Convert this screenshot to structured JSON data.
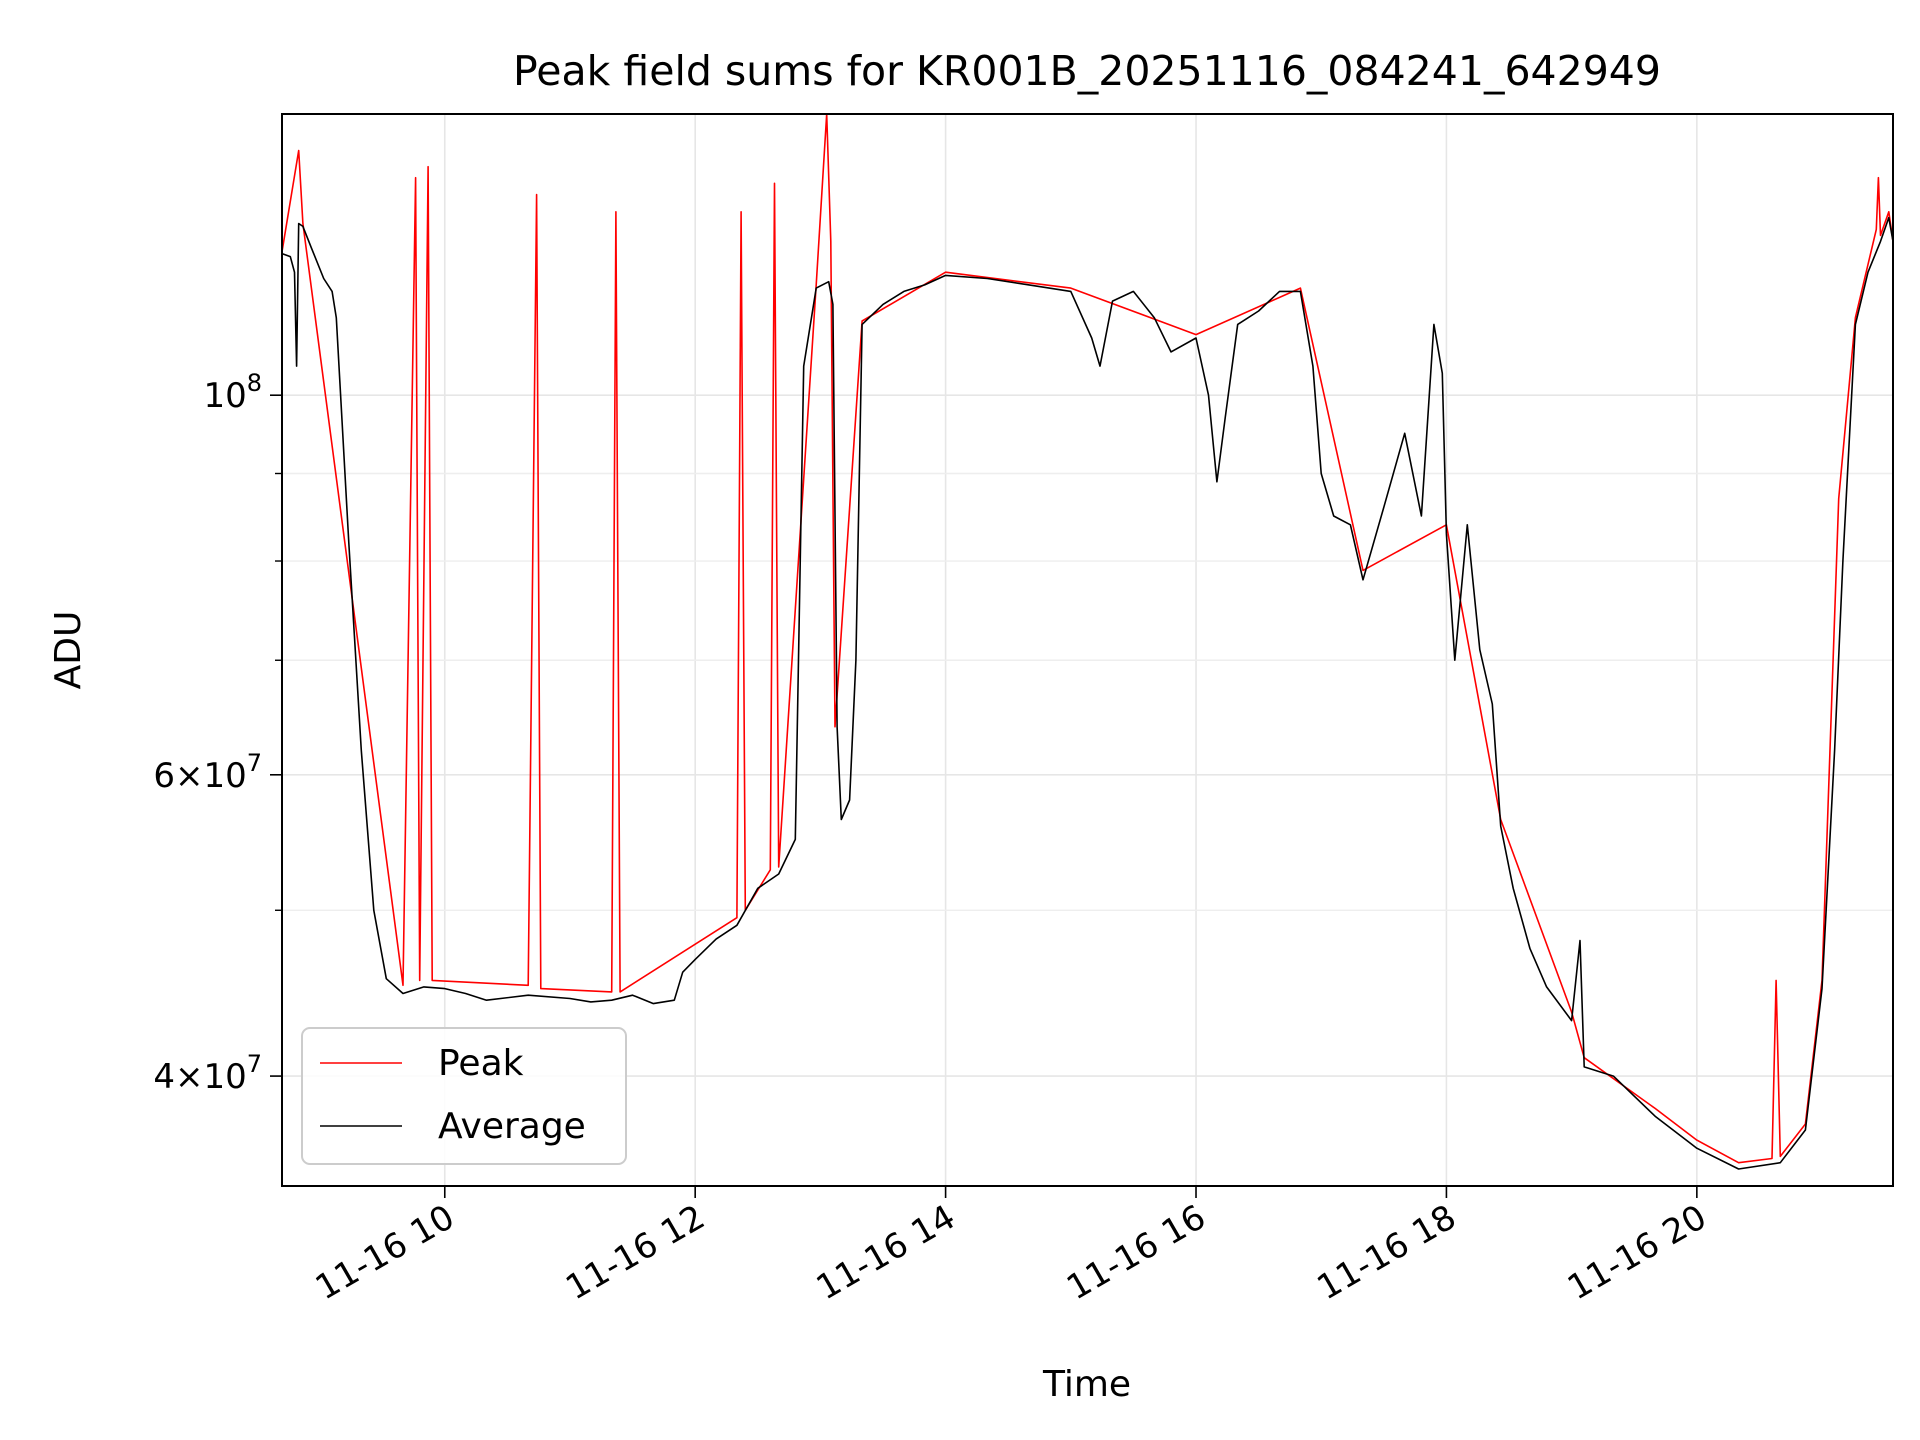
{
  "chart_data": {
    "type": "line",
    "title": "Peak field sums for KR001B_20251116_084241_642949",
    "xlabel": "Time",
    "ylabel": "ADU",
    "yscale": "log",
    "grid": true,
    "legend_position": "lower-left",
    "xlim": [
      "2025-11-16T08:42",
      "2025-11-16T21:34"
    ],
    "ylim": [
      34500000,
      146000000
    ],
    "x_ticks": [
      {
        "value": "2025-11-16T10:00",
        "label": "11-16 10"
      },
      {
        "value": "2025-11-16T12:00",
        "label": "11-16 12"
      },
      {
        "value": "2025-11-16T14:00",
        "label": "11-16 14"
      },
      {
        "value": "2025-11-16T16:00",
        "label": "11-16 16"
      },
      {
        "value": "2025-11-16T18:00",
        "label": "11-16 18"
      },
      {
        "value": "2025-11-16T20:00",
        "label": "11-16 20"
      }
    ],
    "y_major_ticks": [
      {
        "value": 40000000,
        "base": "4",
        "exp": "7"
      },
      {
        "value": 60000000,
        "base": "6",
        "exp": "7"
      },
      {
        "value": 100000000,
        "base": "",
        "exp": "8"
      }
    ],
    "y_minor_ticks": [
      50000000,
      70000000,
      80000000,
      90000000
    ],
    "series": [
      {
        "name": "Average",
        "color": "#000000",
        "points": [
          [
            "2025-11-16T08:42",
            121000000
          ],
          [
            "2025-11-16T08:46",
            120500000
          ],
          [
            "2025-11-16T08:48",
            118000000
          ],
          [
            "2025-11-16T08:49",
            104000000
          ],
          [
            "2025-11-16T08:50",
            126000000
          ],
          [
            "2025-11-16T08:52",
            125500000
          ],
          [
            "2025-11-16T08:56",
            122000000
          ],
          [
            "2025-11-16T09:02",
            117000000
          ],
          [
            "2025-11-16T09:06",
            115000000
          ],
          [
            "2025-11-16T09:08",
            111000000
          ],
          [
            "2025-11-16T09:14",
            82000000
          ],
          [
            "2025-11-16T09:20",
            62000000
          ],
          [
            "2025-11-16T09:26",
            50000000
          ],
          [
            "2025-11-16T09:32",
            45600000
          ],
          [
            "2025-11-16T09:40",
            44700000
          ],
          [
            "2025-11-16T09:50",
            45100000
          ],
          [
            "2025-11-16T10:00",
            45000000
          ],
          [
            "2025-11-16T10:10",
            44700000
          ],
          [
            "2025-11-16T10:20",
            44300000
          ],
          [
            "2025-11-16T10:40",
            44600000
          ],
          [
            "2025-11-16T11:00",
            44400000
          ],
          [
            "2025-11-16T11:10",
            44200000
          ],
          [
            "2025-11-16T11:20",
            44300000
          ],
          [
            "2025-11-16T11:30",
            44600000
          ],
          [
            "2025-11-16T11:40",
            44100000
          ],
          [
            "2025-11-16T11:50",
            44300000
          ],
          [
            "2025-11-16T11:54",
            46000000
          ],
          [
            "2025-11-16T12:00",
            46800000
          ],
          [
            "2025-11-16T12:10",
            48100000
          ],
          [
            "2025-11-16T12:20",
            49000000
          ],
          [
            "2025-11-16T12:30",
            51500000
          ],
          [
            "2025-11-16T12:40",
            52500000
          ],
          [
            "2025-11-16T12:48",
            55000000
          ],
          [
            "2025-11-16T12:52",
            104000000
          ],
          [
            "2025-11-16T12:58",
            115500000
          ],
          [
            "2025-11-16T13:04",
            116500000
          ],
          [
            "2025-11-16T13:06",
            113000000
          ],
          [
            "2025-11-16T13:08",
            64000000
          ],
          [
            "2025-11-16T13:10",
            56500000
          ],
          [
            "2025-11-16T13:14",
            58000000
          ],
          [
            "2025-11-16T13:17",
            70000000
          ],
          [
            "2025-11-16T13:20",
            110000000
          ],
          [
            "2025-11-16T13:30",
            113000000
          ],
          [
            "2025-11-16T13:40",
            115000000
          ],
          [
            "2025-11-16T13:50",
            116000000
          ],
          [
            "2025-11-16T14:00",
            117500000
          ],
          [
            "2025-11-16T14:20",
            117000000
          ],
          [
            "2025-11-16T14:40",
            116000000
          ],
          [
            "2025-11-16T15:00",
            115000000
          ],
          [
            "2025-11-16T15:10",
            108000000
          ],
          [
            "2025-11-16T15:14",
            104000000
          ],
          [
            "2025-11-16T15:20",
            113500000
          ],
          [
            "2025-11-16T15:30",
            115000000
          ],
          [
            "2025-11-16T15:40",
            111000000
          ],
          [
            "2025-11-16T15:48",
            106000000
          ],
          [
            "2025-11-16T16:00",
            108000000
          ],
          [
            "2025-11-16T16:06",
            100000000
          ],
          [
            "2025-11-16T16:10",
            89000000
          ],
          [
            "2025-11-16T16:14",
            97000000
          ],
          [
            "2025-11-16T16:20",
            110000000
          ],
          [
            "2025-11-16T16:30",
            112000000
          ],
          [
            "2025-11-16T16:40",
            115000000
          ],
          [
            "2025-11-16T16:50",
            115000000
          ],
          [
            "2025-11-16T16:56",
            104000000
          ],
          [
            "2025-11-16T17:00",
            90000000
          ],
          [
            "2025-11-16T17:06",
            85000000
          ],
          [
            "2025-11-16T17:14",
            84000000
          ],
          [
            "2025-11-16T17:20",
            78000000
          ],
          [
            "2025-11-16T17:30",
            86000000
          ],
          [
            "2025-11-16T17:40",
            95000000
          ],
          [
            "2025-11-16T17:48",
            85000000
          ],
          [
            "2025-11-16T17:54",
            110000000
          ],
          [
            "2025-11-16T17:58",
            103000000
          ],
          [
            "2025-11-16T18:00",
            83000000
          ],
          [
            "2025-11-16T18:04",
            70000000
          ],
          [
            "2025-11-16T18:10",
            84000000
          ],
          [
            "2025-11-16T18:16",
            71000000
          ],
          [
            "2025-11-16T18:22",
            66000000
          ],
          [
            "2025-11-16T18:26",
            56000000
          ],
          [
            "2025-11-16T18:32",
            51500000
          ],
          [
            "2025-11-16T18:40",
            47500000
          ],
          [
            "2025-11-16T18:48",
            45100000
          ],
          [
            "2025-11-16T19:00",
            43100000
          ],
          [
            "2025-11-16T19:04",
            48000000
          ],
          [
            "2025-11-16T19:06",
            40500000
          ],
          [
            "2025-11-16T19:20",
            40000000
          ],
          [
            "2025-11-16T19:40",
            37900000
          ],
          [
            "2025-11-16T20:00",
            36300000
          ],
          [
            "2025-11-16T20:20",
            35300000
          ],
          [
            "2025-11-16T20:40",
            35600000
          ],
          [
            "2025-11-16T20:52",
            37200000
          ],
          [
            "2025-11-16T21:00",
            45000000
          ],
          [
            "2025-11-16T21:06",
            62000000
          ],
          [
            "2025-11-16T21:10",
            80000000
          ],
          [
            "2025-11-16T21:16",
            110000000
          ],
          [
            "2025-11-16T21:22",
            118000000
          ],
          [
            "2025-11-16T21:28",
            123000000
          ],
          [
            "2025-11-16T21:32",
            127000000
          ],
          [
            "2025-11-16T21:34",
            123000000
          ]
        ]
      },
      {
        "name": "Peak",
        "color": "#ff0000",
        "points": [
          [
            "2025-11-16T08:42",
            121300000
          ],
          [
            "2025-11-16T08:50",
            139000000
          ],
          [
            "2025-11-16T08:52",
            126000000
          ],
          [
            "2025-11-16T09:40",
            45200000
          ],
          [
            "2025-11-16T09:46",
            134000000
          ],
          [
            "2025-11-16T09:48",
            45500000
          ],
          [
            "2025-11-16T09:52",
            136000000
          ],
          [
            "2025-11-16T09:54",
            45500000
          ],
          [
            "2025-11-16T10:40",
            45200000
          ],
          [
            "2025-11-16T10:44",
            131000000
          ],
          [
            "2025-11-16T10:46",
            45000000
          ],
          [
            "2025-11-16T11:20",
            44800000
          ],
          [
            "2025-11-16T11:22",
            128000000
          ],
          [
            "2025-11-16T11:24",
            44800000
          ],
          [
            "2025-11-16T12:20",
            49500000
          ],
          [
            "2025-11-16T12:22",
            128000000
          ],
          [
            "2025-11-16T12:24",
            50000000
          ],
          [
            "2025-11-16T12:36",
            52800000
          ],
          [
            "2025-11-16T12:38",
            133000000
          ],
          [
            "2025-11-16T12:40",
            53000000
          ],
          [
            "2025-11-16T12:58",
            116000000
          ],
          [
            "2025-11-16T13:03",
            146000000
          ],
          [
            "2025-11-16T13:05",
            123000000
          ],
          [
            "2025-11-16T13:07",
            64000000
          ],
          [
            "2025-11-16T13:20",
            110500000
          ],
          [
            "2025-11-16T14:00",
            118000000
          ],
          [
            "2025-11-16T15:00",
            115500000
          ],
          [
            "2025-11-16T16:00",
            108500000
          ],
          [
            "2025-11-16T16:50",
            115500000
          ],
          [
            "2025-11-16T17:20",
            79000000
          ],
          [
            "2025-11-16T18:00",
            84000000
          ],
          [
            "2025-11-16T18:26",
            56500000
          ],
          [
            "2025-11-16T19:00",
            43600000
          ],
          [
            "2025-11-16T19:06",
            41000000
          ],
          [
            "2025-11-16T19:40",
            38300000
          ],
          [
            "2025-11-16T20:00",
            36700000
          ],
          [
            "2025-11-16T20:20",
            35600000
          ],
          [
            "2025-11-16T20:36",
            35800000
          ],
          [
            "2025-11-16T20:38",
            45500000
          ],
          [
            "2025-11-16T20:40",
            35900000
          ],
          [
            "2025-11-16T20:52",
            37500000
          ],
          [
            "2025-11-16T21:00",
            45500000
          ],
          [
            "2025-11-16T21:08",
            87000000
          ],
          [
            "2025-11-16T21:16",
            111000000
          ],
          [
            "2025-11-16T21:26",
            125000000
          ],
          [
            "2025-11-16T21:27",
            134000000
          ],
          [
            "2025-11-16T21:28",
            124000000
          ],
          [
            "2025-11-16T21:32",
            128000000
          ],
          [
            "2025-11-16T21:34",
            123000000
          ]
        ]
      }
    ]
  }
}
